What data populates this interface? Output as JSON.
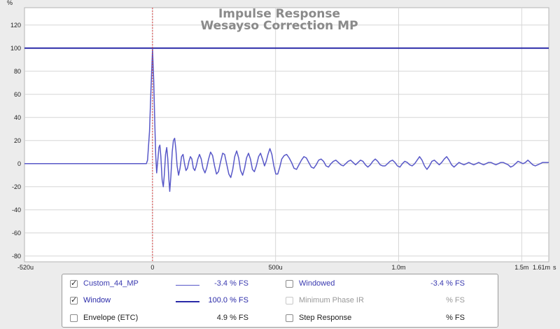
{
  "chart_data": {
    "type": "line",
    "title": "Impulse Response",
    "subtitle": "Wesayso Correction MP",
    "y_unit": "%",
    "x_unit": "s",
    "xlim": [
      -0.00052,
      0.00161
    ],
    "ylim": [
      -85,
      135
    ],
    "y_ticks": [
      "-80",
      "-60",
      "-40",
      "-20",
      "0",
      "20",
      "40",
      "60",
      "80",
      "100",
      "120"
    ],
    "x_ticks": [
      {
        "value": -0.00052,
        "label": "-520u"
      },
      {
        "value": 0,
        "label": "0"
      },
      {
        "value": 0.0005,
        "label": "500u"
      },
      {
        "value": 0.001,
        "label": "1.0m"
      },
      {
        "value": 0.0015,
        "label": "1.5m"
      },
      {
        "value": 0.00161,
        "label": "1.61m"
      }
    ],
    "grid": true,
    "marker_x": 0,
    "series": [
      {
        "name": "Custom_44_MP",
        "color": "#5858c8",
        "points": [
          [
            -0.00052,
            0
          ],
          [
            -2.5e-05,
            0
          ],
          [
            -2e-05,
            3
          ],
          [
            -1.2e-05,
            28
          ],
          [
            -6e-06,
            65
          ],
          [
            0,
            99
          ],
          [
            5e-06,
            72
          ],
          [
            9e-06,
            38
          ],
          [
            1.3e-05,
            8
          ],
          [
            1.7e-05,
            -8
          ],
          [
            2.2e-05,
            4
          ],
          [
            2.6e-05,
            14
          ],
          [
            3e-05,
            16
          ],
          [
            3.4e-05,
            6
          ],
          [
            3.9e-05,
            -14
          ],
          [
            4.4e-05,
            -20
          ],
          [
            4.8e-05,
            -10
          ],
          [
            5.3e-05,
            8
          ],
          [
            5.8e-05,
            14
          ],
          [
            6.2e-05,
            4
          ],
          [
            6.6e-05,
            -12
          ],
          [
            7e-05,
            -24
          ],
          [
            7.5e-05,
            -10
          ],
          [
            8e-05,
            10
          ],
          [
            8.5e-05,
            20
          ],
          [
            9e-05,
            22
          ],
          [
            9.5e-05,
            12
          ],
          [
            0.0001,
            -2
          ],
          [
            0.000106,
            -10
          ],
          [
            0.000112,
            -4
          ],
          [
            0.000118,
            6
          ],
          [
            0.000124,
            8
          ],
          [
            0.00013,
            0
          ],
          [
            0.000136,
            -6
          ],
          [
            0.000142,
            -4
          ],
          [
            0.000148,
            2
          ],
          [
            0.000154,
            6
          ],
          [
            0.00016,
            4
          ],
          [
            0.000166,
            -4
          ],
          [
            0.000172,
            -6
          ],
          [
            0.000178,
            -2
          ],
          [
            0.000184,
            4
          ],
          [
            0.000191,
            8
          ],
          [
            0.000198,
            4
          ],
          [
            0.000205,
            -4
          ],
          [
            0.000213,
            -8
          ],
          [
            0.00022,
            -4
          ],
          [
            0.000228,
            4
          ],
          [
            0.000236,
            10
          ],
          [
            0.000244,
            7
          ],
          [
            0.000252,
            -2
          ],
          [
            0.00026,
            -9
          ],
          [
            0.000268,
            -7
          ],
          [
            0.000276,
            1
          ],
          [
            0.000285,
            9
          ],
          [
            0.000293,
            8
          ],
          [
            0.000301,
            0
          ],
          [
            0.00031,
            -9
          ],
          [
            0.000318,
            -12
          ],
          [
            0.000326,
            -5
          ],
          [
            0.000334,
            6
          ],
          [
            0.000342,
            11
          ],
          [
            0.00035,
            5
          ],
          [
            0.000358,
            -6
          ],
          [
            0.000366,
            -10
          ],
          [
            0.000374,
            -4
          ],
          [
            0.000382,
            5
          ],
          [
            0.00039,
            9
          ],
          [
            0.000398,
            4
          ],
          [
            0.000406,
            -5
          ],
          [
            0.000414,
            -7
          ],
          [
            0.000422,
            -2
          ],
          [
            0.000431,
            6
          ],
          [
            0.000439,
            9
          ],
          [
            0.000447,
            4
          ],
          [
            0.000455,
            -2
          ],
          [
            0.000462,
            2
          ],
          [
            0.000469,
            8
          ],
          [
            0.000477,
            13
          ],
          [
            0.000485,
            8
          ],
          [
            0.000493,
            -2
          ],
          [
            0.000501,
            -9
          ],
          [
            0.000509,
            -9
          ],
          [
            0.000517,
            -3
          ],
          [
            0.000525,
            4
          ],
          [
            0.000535,
            7
          ],
          [
            0.000545,
            8
          ],
          [
            0.000555,
            5
          ],
          [
            0.000565,
            1
          ],
          [
            0.000575,
            -4
          ],
          [
            0.000585,
            -5
          ],
          [
            0.000595,
            -1
          ],
          [
            0.000605,
            3
          ],
          [
            0.000615,
            6
          ],
          [
            0.000625,
            5
          ],
          [
            0.000635,
            1
          ],
          [
            0.000645,
            -3
          ],
          [
            0.000655,
            -4
          ],
          [
            0.000665,
            -1
          ],
          [
            0.000675,
            3
          ],
          [
            0.000685,
            4
          ],
          [
            0.000695,
            2
          ],
          [
            0.000705,
            -2
          ],
          [
            0.000715,
            -3
          ],
          [
            0.000725,
            0
          ],
          [
            0.000735,
            2
          ],
          [
            0.000745,
            3
          ],
          [
            0.000755,
            1
          ],
          [
            0.000765,
            -1
          ],
          [
            0.000775,
            -2
          ],
          [
            0.000785,
            0
          ],
          [
            0.000795,
            2
          ],
          [
            0.000805,
            3
          ],
          [
            0.000815,
            1
          ],
          [
            0.000825,
            -1
          ],
          [
            0.000835,
            1
          ],
          [
            0.000845,
            3
          ],
          [
            0.000855,
            2
          ],
          [
            0.000865,
            -1
          ],
          [
            0.000875,
            -3
          ],
          [
            0.000885,
            -1
          ],
          [
            0.000895,
            2
          ],
          [
            0.000905,
            4
          ],
          [
            0.000915,
            2
          ],
          [
            0.000925,
            -1
          ],
          [
            0.000935,
            -2
          ],
          [
            0.000945,
            -2
          ],
          [
            0.000955,
            0
          ],
          [
            0.000965,
            2
          ],
          [
            0.000975,
            3
          ],
          [
            0.000985,
            1
          ],
          [
            0.000995,
            -2
          ],
          [
            0.001005,
            -3
          ],
          [
            0.001015,
            0
          ],
          [
            0.001025,
            2
          ],
          [
            0.001035,
            1
          ],
          [
            0.001045,
            -1
          ],
          [
            0.001055,
            -2
          ],
          [
            0.001065,
            0
          ],
          [
            0.001075,
            3
          ],
          [
            0.001085,
            6
          ],
          [
            0.001095,
            3
          ],
          [
            0.001105,
            -2
          ],
          [
            0.001115,
            -5
          ],
          [
            0.001125,
            -2
          ],
          [
            0.001135,
            2
          ],
          [
            0.001145,
            3
          ],
          [
            0.001155,
            1
          ],
          [
            0.001165,
            -1
          ],
          [
            0.001175,
            1
          ],
          [
            0.001185,
            4
          ],
          [
            0.001195,
            6
          ],
          [
            0.001205,
            3
          ],
          [
            0.001215,
            -1
          ],
          [
            0.001225,
            -3
          ],
          [
            0.001235,
            -1
          ],
          [
            0.001245,
            1
          ],
          [
            0.001255,
            0
          ],
          [
            0.001265,
            -1
          ],
          [
            0.001275,
            0
          ],
          [
            0.001285,
            1
          ],
          [
            0.001295,
            0
          ],
          [
            0.001305,
            -1
          ],
          [
            0.001315,
            0
          ],
          [
            0.001325,
            1
          ],
          [
            0.001335,
            0
          ],
          [
            0.001345,
            -1
          ],
          [
            0.001355,
            0
          ],
          [
            0.001365,
            1
          ],
          [
            0.001375,
            1
          ],
          [
            0.001385,
            0
          ],
          [
            0.001395,
            -1
          ],
          [
            0.001405,
            0
          ],
          [
            0.001415,
            1
          ],
          [
            0.001425,
            1
          ],
          [
            0.001435,
            0
          ],
          [
            0.001445,
            -1
          ],
          [
            0.001455,
            -3
          ],
          [
            0.001465,
            -2
          ],
          [
            0.001475,
            0
          ],
          [
            0.001485,
            2
          ],
          [
            0.001495,
            1
          ],
          [
            0.001505,
            0
          ],
          [
            0.001515,
            1
          ],
          [
            0.001525,
            3
          ],
          [
            0.001535,
            1
          ],
          [
            0.001545,
            -1
          ],
          [
            0.001555,
            -2
          ],
          [
            0.001565,
            -1
          ],
          [
            0.001575,
            0
          ],
          [
            0.001585,
            1
          ],
          [
            0.001595,
            1
          ],
          [
            0.00161,
            1
          ]
        ]
      },
      {
        "name": "Window",
        "color": "#2a2aa8",
        "points": [
          [
            -0.00052,
            100
          ],
          [
            0.00161,
            100
          ]
        ]
      }
    ]
  },
  "legend": {
    "items": [
      {
        "label": "Custom_44_MP",
        "checked": true,
        "value": "-3.4 % FS",
        "label_color": "#3a3ab0",
        "swatch_color": "#5858c8",
        "swatch_width": 1,
        "disabled": false
      },
      {
        "label": "Window",
        "checked": true,
        "value": "100.0 % FS",
        "label_color": "#2a2aa8",
        "swatch_color": "#2a2aa8",
        "swatch_width": 2,
        "disabled": false
      },
      {
        "label": "Envelope (ETC)",
        "checked": false,
        "value": "4.9 % FS",
        "label_color": "#222222",
        "swatch_color": "",
        "swatch_width": 0,
        "disabled": false
      },
      {
        "label": "Windowed",
        "checked": false,
        "value": "-3.4 % FS",
        "label_color": "#3a3ab0",
        "swatch_color": "",
        "swatch_width": 0,
        "disabled": false
      },
      {
        "label": "Minimum Phase IR",
        "checked": false,
        "value": "% FS",
        "label_color": "#999999",
        "swatch_color": "",
        "swatch_width": 0,
        "disabled": true
      },
      {
        "label": "Step Response",
        "checked": false,
        "value": "% FS",
        "label_color": "#222222",
        "swatch_color": "",
        "swatch_width": 0,
        "disabled": false
      }
    ]
  }
}
